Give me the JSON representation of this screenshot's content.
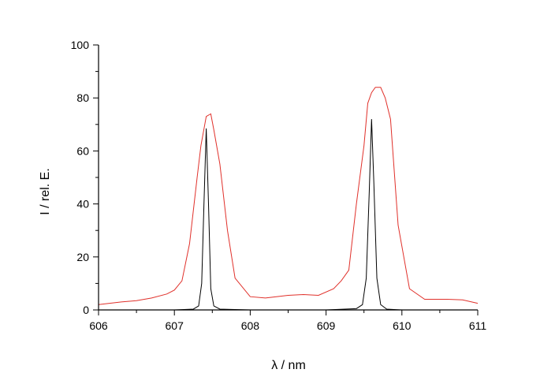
{
  "chart_data": {
    "type": "line",
    "xlabel": "λ / nm",
    "ylabel": "I / rel. E.",
    "xlim": [
      606,
      611
    ],
    "ylim": [
      0,
      100
    ],
    "x_ticks": [
      606,
      607,
      608,
      609,
      610,
      611
    ],
    "y_ticks": [
      0,
      20,
      40,
      60,
      80,
      100
    ],
    "grid": false,
    "series": [
      {
        "color": "#e0302a",
        "x": [
          606.0,
          606.3,
          606.5,
          606.7,
          606.9,
          607.0,
          607.1,
          607.2,
          607.3,
          607.35,
          607.42,
          607.48,
          607.52,
          607.6,
          607.7,
          607.8,
          608.0,
          608.2,
          608.5,
          608.7,
          608.9,
          609.1,
          609.2,
          609.3,
          609.4,
          609.5,
          609.55,
          609.6,
          609.65,
          609.72,
          609.78,
          609.85,
          609.95,
          610.1,
          610.3,
          610.6,
          610.8,
          611.0
        ],
        "y": [
          2.0,
          3.0,
          3.5,
          4.5,
          6.0,
          7.5,
          11.0,
          25.0,
          50.0,
          62.0,
          73.0,
          74.0,
          68.0,
          55.0,
          30.0,
          12.0,
          5.0,
          4.5,
          5.5,
          5.8,
          5.5,
          8.0,
          11.0,
          15.0,
          40.0,
          62.0,
          78.0,
          82.0,
          84.0,
          84.0,
          80.0,
          72.0,
          32.0,
          8.0,
          4.0,
          4.0,
          3.8,
          2.5
        ]
      },
      {
        "color": "#000000",
        "x": [
          606.0,
          607.0,
          607.25,
          607.32,
          607.36,
          607.39,
          607.42,
          607.45,
          607.48,
          607.52,
          607.6,
          608.0,
          609.0,
          609.4,
          609.48,
          609.53,
          609.57,
          609.6,
          609.63,
          609.67,
          609.72,
          609.8,
          610.0,
          611.0
        ],
        "y": [
          0.0,
          0.0,
          0.3,
          1.5,
          10.0,
          40.0,
          68.5,
          40.0,
          8.0,
          1.5,
          0.3,
          0.0,
          0.0,
          0.5,
          2.0,
          12.0,
          45.0,
          72.0,
          48.0,
          12.0,
          2.0,
          0.3,
          0.0,
          0.0
        ]
      }
    ]
  }
}
